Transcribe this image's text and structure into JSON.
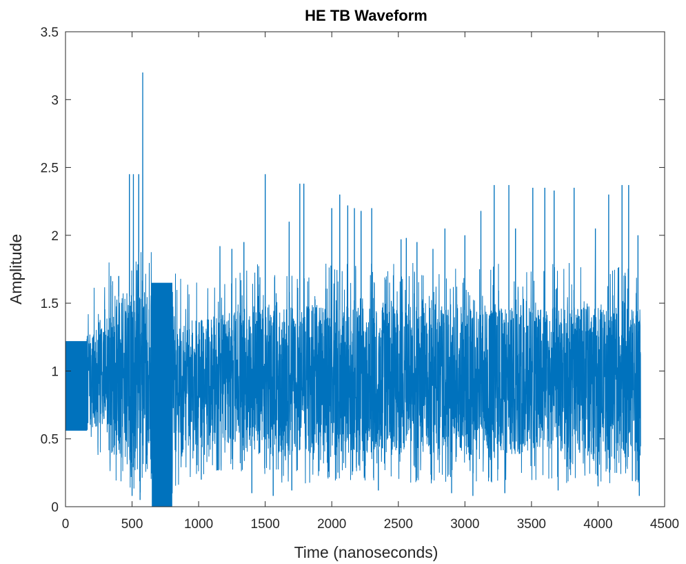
{
  "chart_data": {
    "type": "line",
    "title": "HE TB Waveform",
    "xlabel": "Time (nanoseconds)",
    "ylabel": "Amplitude",
    "xlim": [
      0,
      4500
    ],
    "ylim": [
      0,
      3.5
    ],
    "xticks": [
      0,
      500,
      1000,
      1500,
      2000,
      2500,
      3000,
      3500,
      4000,
      4500
    ],
    "yticks": [
      0,
      0.5,
      1,
      1.5,
      2,
      2.5,
      3,
      3.5
    ],
    "xtick_labels": [
      "0",
      "500",
      "1000",
      "1500",
      "2000",
      "2500",
      "3000",
      "3500",
      "4000",
      "4500"
    ],
    "ytick_labels": [
      "0",
      "0.5",
      "1",
      "1.5",
      "2",
      "2.5",
      "3",
      "3.5"
    ],
    "grid": false,
    "legend": "none",
    "color": "#0072BD",
    "series": [
      {
        "samples": 4320,
        "envelope": {
          "x": [
            0,
            160,
            170,
            320,
            330,
            520,
            560,
            640,
            650,
            800,
            810,
            1000,
            1200,
            1400,
            1600,
            1800,
            2000,
            2200,
            2400,
            2600,
            2800,
            3000,
            3200,
            3400,
            3600,
            3800,
            4000,
            4200,
            4320
          ],
          "band_low": [
            0.56,
            0.56,
            0.62,
            0.62,
            0.45,
            0.3,
            0.3,
            0.3,
            0.0,
            0.0,
            0.4,
            0.45,
            0.5,
            0.5,
            0.42,
            0.42,
            0.42,
            0.42,
            0.42,
            0.42,
            0.4,
            0.42,
            0.42,
            0.42,
            0.45,
            0.42,
            0.42,
            0.42,
            0.42
          ],
          "band_high": [
            1.22,
            1.22,
            1.3,
            1.3,
            1.55,
            1.55,
            1.55,
            1.55,
            1.65,
            1.65,
            1.4,
            1.35,
            1.4,
            1.45,
            1.45,
            1.45,
            1.45,
            1.45,
            1.45,
            1.45,
            1.45,
            1.45,
            1.45,
            1.45,
            1.45,
            1.45,
            1.45,
            1.45,
            1.45
          ]
        },
        "peaks": [
          {
            "x": 480,
            "y": 2.45
          },
          {
            "x": 510,
            "y": 2.45
          },
          {
            "x": 550,
            "y": 2.45
          },
          {
            "x": 580,
            "y": 3.2
          },
          {
            "x": 340,
            "y": 1.7
          },
          {
            "x": 400,
            "y": 1.7
          },
          {
            "x": 1160,
            "y": 1.92
          },
          {
            "x": 1250,
            "y": 1.9
          },
          {
            "x": 1340,
            "y": 1.95
          },
          {
            "x": 1500,
            "y": 2.45
          },
          {
            "x": 1680,
            "y": 2.1
          },
          {
            "x": 1760,
            "y": 2.38
          },
          {
            "x": 1790,
            "y": 2.38
          },
          {
            "x": 2000,
            "y": 2.2
          },
          {
            "x": 2060,
            "y": 2.3
          },
          {
            "x": 2120,
            "y": 2.22
          },
          {
            "x": 2170,
            "y": 2.2
          },
          {
            "x": 2220,
            "y": 2.18
          },
          {
            "x": 2300,
            "y": 2.2
          },
          {
            "x": 2520,
            "y": 1.97
          },
          {
            "x": 2560,
            "y": 1.98
          },
          {
            "x": 2640,
            "y": 1.95
          },
          {
            "x": 2760,
            "y": 1.9
          },
          {
            "x": 2850,
            "y": 2.05
          },
          {
            "x": 3000,
            "y": 2.0
          },
          {
            "x": 3120,
            "y": 2.18
          },
          {
            "x": 3220,
            "y": 2.37
          },
          {
            "x": 3330,
            "y": 2.37
          },
          {
            "x": 3380,
            "y": 2.05
          },
          {
            "x": 3510,
            "y": 2.35
          },
          {
            "x": 3600,
            "y": 2.35
          },
          {
            "x": 3670,
            "y": 2.33
          },
          {
            "x": 3820,
            "y": 2.35
          },
          {
            "x": 3980,
            "y": 2.05
          },
          {
            "x": 4080,
            "y": 2.3
          },
          {
            "x": 4180,
            "y": 2.37
          },
          {
            "x": 4230,
            "y": 2.37
          },
          {
            "x": 4300,
            "y": 2.0
          }
        ],
        "troughs": [
          {
            "x": 500,
            "y": 0.08
          },
          {
            "x": 560,
            "y": 0.05
          },
          {
            "x": 1020,
            "y": 0.2
          },
          {
            "x": 1400,
            "y": 0.1
          },
          {
            "x": 1560,
            "y": 0.08
          },
          {
            "x": 1700,
            "y": 0.12
          },
          {
            "x": 2350,
            "y": 0.12
          },
          {
            "x": 2900,
            "y": 0.1
          },
          {
            "x": 3060,
            "y": 0.08
          },
          {
            "x": 3300,
            "y": 0.1
          },
          {
            "x": 3700,
            "y": 0.12
          },
          {
            "x": 4000,
            "y": 0.15
          },
          {
            "x": 4310,
            "y": 0.08
          }
        ]
      }
    ]
  }
}
